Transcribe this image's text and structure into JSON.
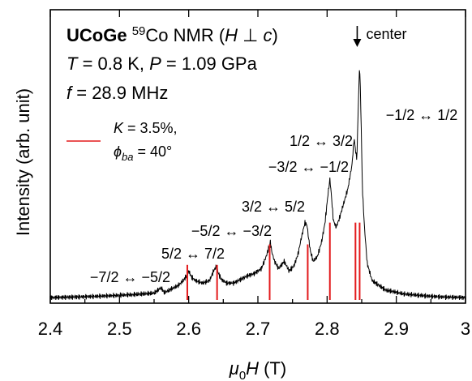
{
  "chart_data": {
    "type": "line",
    "title_lines": [
      [
        "UCoGe",
        " ",
        "59",
        "Co NMR (",
        "H",
        " ⊥ ",
        "c",
        ")"
      ],
      [
        "T",
        " = 0.8 K, ",
        "P",
        " = 1.09 GPa"
      ],
      [
        "f",
        " = 28.9 MHz"
      ]
    ],
    "xlabel": {
      "mu": "μ",
      "sub0": "0",
      "H": "H",
      "unit": " (T)"
    },
    "ylabel": "Intensity (arb. unit)",
    "xlim": [
      2.4,
      3.0
    ],
    "ylim": [
      0,
      1.0
    ],
    "x_ticks": [
      "2.4",
      "2.5",
      "2.6",
      "2.7",
      "2.8",
      "2.9",
      "3"
    ],
    "x_tick_values": [
      2.4,
      2.5,
      2.6,
      2.7,
      2.8,
      2.9,
      3.0
    ],
    "grid": false,
    "legend": {
      "placement": "left",
      "color": "#e31a1c",
      "line1": "K = 3.5%,",
      "line2_phi": "ϕ",
      "line2_sub": "ba",
      "line2_rest": " = 40°"
    },
    "center_marker": {
      "label": "center",
      "x": 2.847
    },
    "transitions": [
      {
        "label": "−1/2 ↔ 1/2",
        "x": 2.847
      },
      {
        "label": "1/2 ↔ 3/2",
        "x": 2.841
      },
      {
        "label": "−3/2 ↔ −1/2",
        "x": 2.804
      },
      {
        "label": "3/2 ↔ 5/2",
        "x": 2.772
      },
      {
        "label": "−5/2 ↔ −3/2",
        "x": 2.717
      },
      {
        "label": "5/2 ↔ 7/2",
        "x": 2.641
      },
      {
        "label": "−7/2 ↔ −5/2",
        "x": 2.598
      }
    ],
    "red_lines": [
      {
        "x": 2.598,
        "h": 0.145
      },
      {
        "x": 2.641,
        "h": 0.145
      },
      {
        "x": 2.717,
        "h": 0.23
      },
      {
        "x": 2.772,
        "h": 0.23
      },
      {
        "x": 2.804,
        "h": 0.32
      },
      {
        "x": 2.841,
        "h": 0.32
      },
      {
        "x": 2.847,
        "h": 0.32
      }
    ],
    "series": [
      {
        "color": "#000000",
        "x": [
          2.4,
          2.43,
          2.46,
          2.49,
          2.52,
          2.55,
          2.56,
          2.565,
          2.575,
          2.585,
          2.592,
          2.597,
          2.6,
          2.604,
          2.61,
          2.62,
          2.63,
          2.636,
          2.64,
          2.643,
          2.647,
          2.655,
          2.665,
          2.675,
          2.685,
          2.695,
          2.705,
          2.712,
          2.716,
          2.718,
          2.72,
          2.724,
          2.73,
          2.738,
          2.745,
          2.752,
          2.758,
          2.763,
          2.768,
          2.771,
          2.773,
          2.776,
          2.78,
          2.786,
          2.792,
          2.797,
          2.801,
          2.804,
          2.806,
          2.809,
          2.813,
          2.818,
          2.824,
          2.83,
          2.836,
          2.839,
          2.841,
          2.843,
          2.845,
          2.847,
          2.849,
          2.851,
          2.854,
          2.858,
          2.865,
          2.875,
          2.885,
          2.895,
          2.91,
          2.93,
          2.95,
          2.97,
          3.0
        ],
        "y": [
          0.01,
          0.012,
          0.014,
          0.018,
          0.022,
          0.028,
          0.05,
          0.03,
          0.045,
          0.06,
          0.08,
          0.1,
          0.12,
          0.095,
          0.08,
          0.07,
          0.08,
          0.12,
          0.14,
          0.11,
          0.085,
          0.07,
          0.07,
          0.085,
          0.1,
          0.11,
          0.13,
          0.18,
          0.22,
          0.24,
          0.2,
          0.16,
          0.13,
          0.16,
          0.12,
          0.14,
          0.19,
          0.26,
          0.32,
          0.31,
          0.26,
          0.2,
          0.16,
          0.18,
          0.24,
          0.32,
          0.43,
          0.5,
          0.44,
          0.33,
          0.3,
          0.34,
          0.4,
          0.46,
          0.56,
          0.67,
          0.62,
          0.58,
          0.8,
          0.98,
          0.76,
          0.46,
          0.3,
          0.15,
          0.08,
          0.06,
          0.04,
          0.035,
          0.025,
          0.02,
          0.015,
          0.012,
          0.01
        ]
      }
    ]
  }
}
